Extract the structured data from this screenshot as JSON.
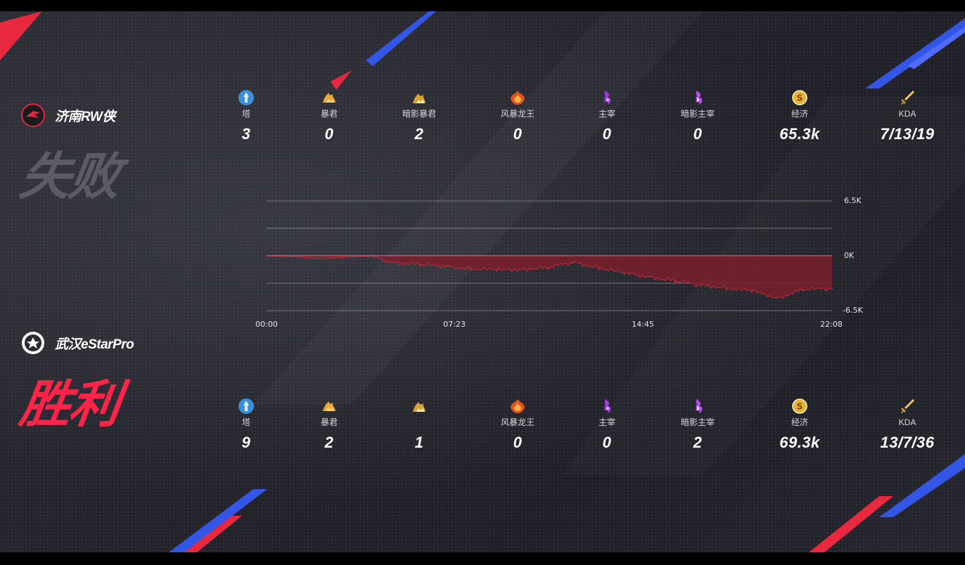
{
  "team_top": {
    "name": "济南RW侠",
    "result": "失败",
    "stats": [
      {
        "icon": "tower-icon",
        "label": "塔",
        "value": "3"
      },
      {
        "icon": "tyrant-icon",
        "label": "暴君",
        "value": "0"
      },
      {
        "icon": "shadow-tyrant-icon",
        "label": "暗影暴君",
        "value": "2"
      },
      {
        "icon": "storm-dragon-icon",
        "label": "风暴龙王",
        "value": "0"
      },
      {
        "icon": "overlord-icon",
        "label": "主宰",
        "value": "0"
      },
      {
        "icon": "shadow-overlord-icon",
        "label": "暗影主宰",
        "value": "0"
      },
      {
        "icon": "gold-coin-icon",
        "label": "经济",
        "value": "65.3k"
      },
      {
        "icon": "sword-icon",
        "label": "KDA",
        "value": "7/13/19"
      }
    ]
  },
  "team_bottom": {
    "name": "武汉eStarPro",
    "result": "胜利",
    "stats": [
      {
        "icon": "tower-icon",
        "label": "塔",
        "value": "9"
      },
      {
        "icon": "tyrant-icon",
        "label": "暴君",
        "value": "2"
      },
      {
        "icon": "shadow-tyrant-icon",
        "label": "",
        "value": "1"
      },
      {
        "icon": "storm-dragon-icon",
        "label": "风暴龙王",
        "value": "0"
      },
      {
        "icon": "overlord-icon",
        "label": "主宰",
        "value": "0"
      },
      {
        "icon": "shadow-overlord-icon",
        "label": "暗影主宰",
        "value": "2"
      },
      {
        "icon": "gold-coin-icon",
        "label": "经济",
        "value": "69.3k"
      },
      {
        "icon": "sword-icon",
        "label": "KDA",
        "value": "13/7/36"
      }
    ]
  },
  "colors": {
    "win": "#ff2448",
    "lose": "#5b5c64",
    "chart_fill": "#7a1f2c",
    "chart_line": "#c8283d"
  },
  "chart_data": {
    "type": "area",
    "xlabel": "",
    "ylabel": "",
    "x_ticks": [
      "00:00",
      "07:23",
      "14:45",
      "22:08"
    ],
    "y_ticks": [
      "6.5K",
      "0K",
      "-6.5K"
    ],
    "ylim": [
      -6500,
      6500
    ],
    "x_unit": "minutes",
    "x": [
      0,
      1,
      2,
      3,
      4,
      5,
      6,
      7,
      8,
      9,
      10,
      11,
      12,
      13,
      14,
      15,
      16,
      17,
      18,
      19,
      20,
      21,
      22.13
    ],
    "series": [
      {
        "values": [
          0,
          -100,
          -300,
          -200,
          0,
          -800,
          -1000,
          -1300,
          -1500,
          -1700,
          -1600,
          -1400,
          -800,
          -1400,
          -2100,
          -2500,
          -3000,
          -3500,
          -3800,
          -4200,
          -5000,
          -4000,
          -3900
        ]
      }
    ]
  }
}
